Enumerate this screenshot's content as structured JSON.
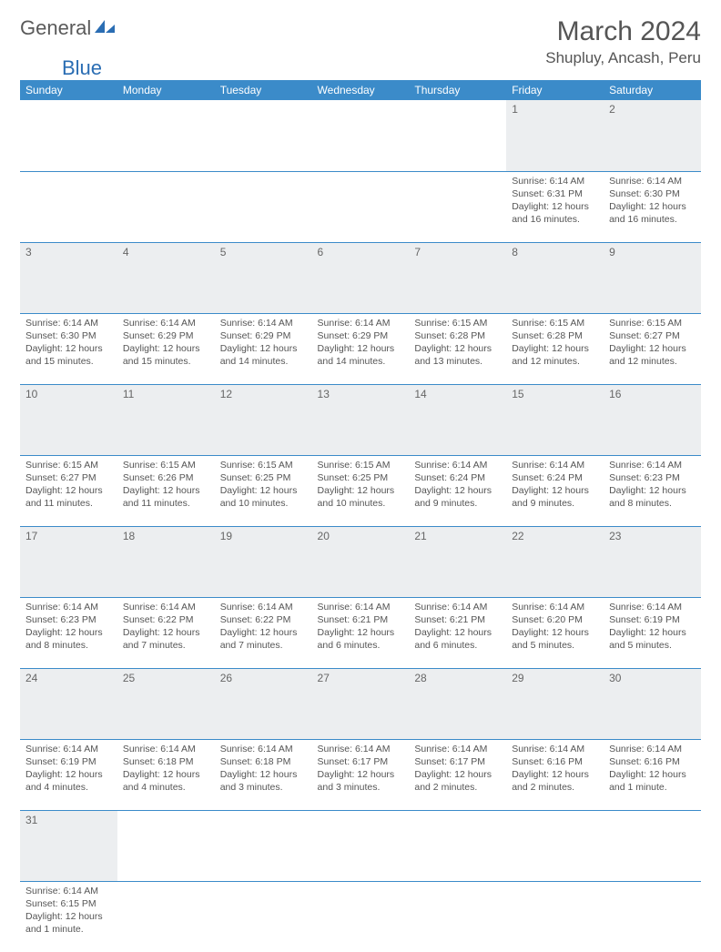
{
  "logo": {
    "text1": "General",
    "text2": "Blue",
    "color1": "#5a5a5a",
    "color2": "#2a6db3"
  },
  "title": "March 2024",
  "location": "Shupluy, Ancash, Peru",
  "colors": {
    "header_bg": "#3b8bc9",
    "header_fg": "#ffffff",
    "daynum_bg": "#eceef0",
    "border": "#3b8bc9",
    "text": "#555555"
  },
  "fonts": {
    "title_pt": 30,
    "location_pt": 17,
    "dayheader_pt": 12,
    "body_pt": 10.5
  },
  "day_headers": [
    "Sunday",
    "Monday",
    "Tuesday",
    "Wednesday",
    "Thursday",
    "Friday",
    "Saturday"
  ],
  "weeks": [
    [
      null,
      null,
      null,
      null,
      null,
      {
        "n": "1",
        "sr": "6:14 AM",
        "ss": "6:31 PM",
        "dl": "12 hours and 16 minutes."
      },
      {
        "n": "2",
        "sr": "6:14 AM",
        "ss": "6:30 PM",
        "dl": "12 hours and 16 minutes."
      }
    ],
    [
      {
        "n": "3",
        "sr": "6:14 AM",
        "ss": "6:30 PM",
        "dl": "12 hours and 15 minutes."
      },
      {
        "n": "4",
        "sr": "6:14 AM",
        "ss": "6:29 PM",
        "dl": "12 hours and 15 minutes."
      },
      {
        "n": "5",
        "sr": "6:14 AM",
        "ss": "6:29 PM",
        "dl": "12 hours and 14 minutes."
      },
      {
        "n": "6",
        "sr": "6:14 AM",
        "ss": "6:29 PM",
        "dl": "12 hours and 14 minutes."
      },
      {
        "n": "7",
        "sr": "6:15 AM",
        "ss": "6:28 PM",
        "dl": "12 hours and 13 minutes."
      },
      {
        "n": "8",
        "sr": "6:15 AM",
        "ss": "6:28 PM",
        "dl": "12 hours and 12 minutes."
      },
      {
        "n": "9",
        "sr": "6:15 AM",
        "ss": "6:27 PM",
        "dl": "12 hours and 12 minutes."
      }
    ],
    [
      {
        "n": "10",
        "sr": "6:15 AM",
        "ss": "6:27 PM",
        "dl": "12 hours and 11 minutes."
      },
      {
        "n": "11",
        "sr": "6:15 AM",
        "ss": "6:26 PM",
        "dl": "12 hours and 11 minutes."
      },
      {
        "n": "12",
        "sr": "6:15 AM",
        "ss": "6:25 PM",
        "dl": "12 hours and 10 minutes."
      },
      {
        "n": "13",
        "sr": "6:15 AM",
        "ss": "6:25 PM",
        "dl": "12 hours and 10 minutes."
      },
      {
        "n": "14",
        "sr": "6:14 AM",
        "ss": "6:24 PM",
        "dl": "12 hours and 9 minutes."
      },
      {
        "n": "15",
        "sr": "6:14 AM",
        "ss": "6:24 PM",
        "dl": "12 hours and 9 minutes."
      },
      {
        "n": "16",
        "sr": "6:14 AM",
        "ss": "6:23 PM",
        "dl": "12 hours and 8 minutes."
      }
    ],
    [
      {
        "n": "17",
        "sr": "6:14 AM",
        "ss": "6:23 PM",
        "dl": "12 hours and 8 minutes."
      },
      {
        "n": "18",
        "sr": "6:14 AM",
        "ss": "6:22 PM",
        "dl": "12 hours and 7 minutes."
      },
      {
        "n": "19",
        "sr": "6:14 AM",
        "ss": "6:22 PM",
        "dl": "12 hours and 7 minutes."
      },
      {
        "n": "20",
        "sr": "6:14 AM",
        "ss": "6:21 PM",
        "dl": "12 hours and 6 minutes."
      },
      {
        "n": "21",
        "sr": "6:14 AM",
        "ss": "6:21 PM",
        "dl": "12 hours and 6 minutes."
      },
      {
        "n": "22",
        "sr": "6:14 AM",
        "ss": "6:20 PM",
        "dl": "12 hours and 5 minutes."
      },
      {
        "n": "23",
        "sr": "6:14 AM",
        "ss": "6:19 PM",
        "dl": "12 hours and 5 minutes."
      }
    ],
    [
      {
        "n": "24",
        "sr": "6:14 AM",
        "ss": "6:19 PM",
        "dl": "12 hours and 4 minutes."
      },
      {
        "n": "25",
        "sr": "6:14 AM",
        "ss": "6:18 PM",
        "dl": "12 hours and 4 minutes."
      },
      {
        "n": "26",
        "sr": "6:14 AM",
        "ss": "6:18 PM",
        "dl": "12 hours and 3 minutes."
      },
      {
        "n": "27",
        "sr": "6:14 AM",
        "ss": "6:17 PM",
        "dl": "12 hours and 3 minutes."
      },
      {
        "n": "28",
        "sr": "6:14 AM",
        "ss": "6:17 PM",
        "dl": "12 hours and 2 minutes."
      },
      {
        "n": "29",
        "sr": "6:14 AM",
        "ss": "6:16 PM",
        "dl": "12 hours and 2 minutes."
      },
      {
        "n": "30",
        "sr": "6:14 AM",
        "ss": "6:16 PM",
        "dl": "12 hours and 1 minute."
      }
    ],
    [
      {
        "n": "31",
        "sr": "6:14 AM",
        "ss": "6:15 PM",
        "dl": "12 hours and 1 minute."
      },
      null,
      null,
      null,
      null,
      null,
      null
    ]
  ],
  "labels": {
    "sunrise": "Sunrise:",
    "sunset": "Sunset:",
    "daylight": "Daylight:"
  }
}
